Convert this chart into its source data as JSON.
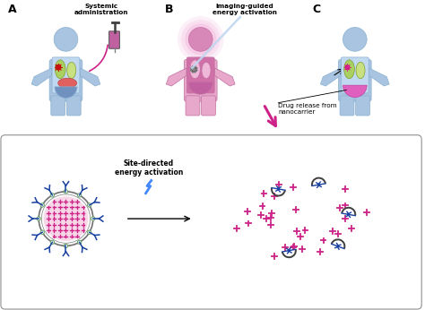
{
  "bg_color": "#ffffff",
  "figure_size": [
    4.74,
    3.46
  ],
  "dpi": 100,
  "label_A": "A",
  "label_B": "B",
  "label_C": "C",
  "text_systemic": "Systemic\nadministration",
  "text_imaging": "Imaging-guided\nenergy activation",
  "text_drug": "Drug release from\nnanocarrier",
  "text_site": "Site-directed\nenergy activation",
  "body_blue": "#a8c4e0",
  "body_blue_dark": "#8ab0d0",
  "body_pink": "#e090c0",
  "body_pink_light": "#f0b8d8",
  "lung_green": "#aad060",
  "lung_green_light": "#c8e080",
  "liver_red": "#e06060",
  "liver_dark": "#c04040",
  "inner_blue": "#c0d8f0",
  "tumor_red": "#cc1010",
  "tumor_pink": "#dd2090",
  "arrow_pink": "#cc2288",
  "plus_color": "#cc2288",
  "ab_color": "#1840a0",
  "circle_color": "#60a060",
  "lightning_color": "#4488ff",
  "panel_line_color": "#909090",
  "syringe_pink": "#cc2288",
  "beam_color": "#c0d8f0",
  "diaphragm_blue": "#7090c0",
  "diaphragm_pink": "#c060a0"
}
